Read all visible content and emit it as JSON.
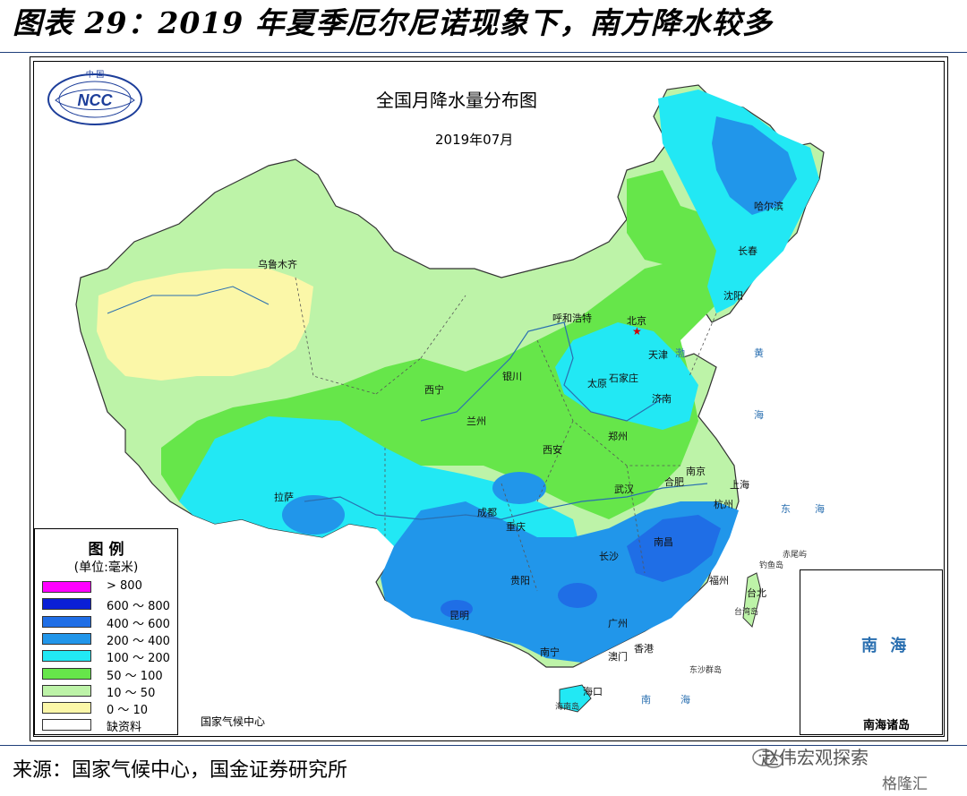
{
  "header": {
    "title": "图表 29：2019 年夏季厄尔尼诺现象下，南方降水较多"
  },
  "map": {
    "title": "全国月降水量分布图",
    "date": "2019年07月",
    "logo_text": "NCC",
    "logo_top_text": "中 国",
    "credit": "国家气候中心",
    "legend": {
      "title": "图 例",
      "unit": "(单位:毫米)",
      "items": [
        {
          "label": "> 800",
          "color": "#ff00ff"
        },
        {
          "label": "600 ～ 800",
          "color": "#0a1fd6"
        },
        {
          "label": "400 ～ 600",
          "color": "#1f6ee6"
        },
        {
          "label": "200 ～ 400",
          "color": "#2196ea"
        },
        {
          "label": "100 ～ 200",
          "color": "#22e8f4"
        },
        {
          "label": "50 ～ 100",
          "color": "#66e64a"
        },
        {
          "label": "10 ～ 50",
          "color": "#bdf3a8"
        },
        {
          "label": "0 ～ 10",
          "color": "#fbf7a8"
        },
        {
          "label": "缺资料",
          "color": "#ffffff"
        }
      ]
    },
    "cities": {
      "urumqi": "乌鲁木齐",
      "harbin": "哈尔滨",
      "changchun": "长春",
      "shenyang": "沈阳",
      "hohhot": "呼和浩特",
      "beijing": "北京",
      "tianjin": "天津",
      "shijiazhuang": "石家庄",
      "taiyuan": "太原",
      "jinan": "济南",
      "yinchuan": "银川",
      "xining": "西宁",
      "lanzhou": "兰州",
      "xian": "西安",
      "zhengzhou": "郑州",
      "nanjing": "南京",
      "hefei": "合肥",
      "shanghai": "上海",
      "wuhan": "武汉",
      "hangzhou": "杭州",
      "lhasa": "拉萨",
      "chengdu": "成都",
      "chongqing": "重庆",
      "nanchang": "南昌",
      "changsha": "长沙",
      "fuzhou": "福州",
      "taipei": "台北",
      "guiyang": "贵阳",
      "kunming": "昆明",
      "guangzhou": "广州",
      "hongkong": "香港",
      "macao": "澳门",
      "nanning": "南宁",
      "haikou": "海口"
    },
    "seas": {
      "bohai": "渤",
      "yellow": "黄",
      "yellow2": "海",
      "east": "东",
      "east2": "海",
      "south": "南",
      "south2": "海"
    },
    "small_places": {
      "taiwan": "台湾岛",
      "hainan": "海南岛",
      "chiwei": "赤尾屿",
      "diaoyu": "钓鱼岛",
      "dongsha": "东沙群岛"
    },
    "inset": {
      "sea_label": "南 海",
      "caption": "南海诸岛"
    }
  },
  "footer": {
    "source": "来源：国家气候中心，国金证券研究所",
    "watermark": "赵伟宏观探索",
    "watermark2": "格隆汇"
  }
}
